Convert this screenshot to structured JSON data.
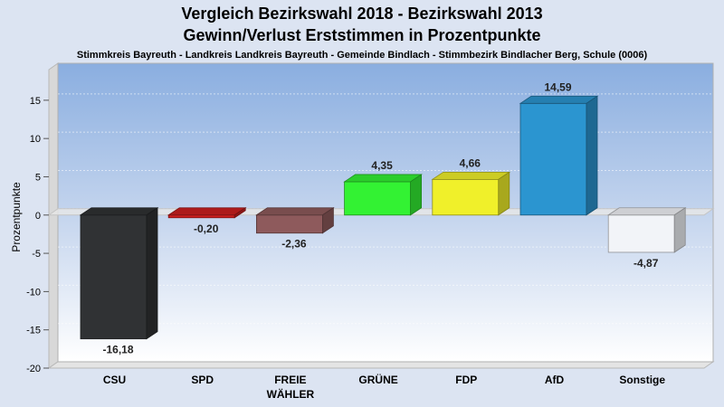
{
  "chart_data": {
    "type": "bar",
    "title": "Vergleich Bezirkswahl 2018 - Bezirkswahl 2013",
    "title2": "Gewinn/Verlust Erststimmen in Prozentpunkte",
    "subtitle": "Stimmkreis Bayreuth - Landkreis Landkreis Bayreuth - Gemeinde Bindlach - Stimmbezirk Bindlacher Berg, Schule (0006)",
    "ylabel": "Prozentpunkte",
    "ylim": [
      -20,
      19
    ],
    "yticks": [
      -20,
      -15,
      -10,
      -5,
      0,
      5,
      10,
      15
    ],
    "grid": true,
    "categories": [
      {
        "label": "CSU",
        "label2": ""
      },
      {
        "label": "SPD",
        "label2": ""
      },
      {
        "label": "FREIE",
        "label2": "WÄHLER"
      },
      {
        "label": "GRÜNE",
        "label2": ""
      },
      {
        "label": "FDP",
        "label2": ""
      },
      {
        "label": "AfD",
        "label2": ""
      },
      {
        "label": "Sonstige",
        "label2": ""
      }
    ],
    "values": [
      -16.18,
      -0.2,
      -2.36,
      4.35,
      4.66,
      14.59,
      -4.87
    ],
    "value_labels": [
      "-16,18",
      "-0,20",
      "-2,36",
      "4,35",
      "4,66",
      "14,59",
      "-4,87"
    ],
    "colors": [
      "#303234",
      "#cc2020",
      "#8e5a5c",
      "#33f233",
      "#f0f02a",
      "#2b95d0",
      "#f2f4f8"
    ]
  }
}
